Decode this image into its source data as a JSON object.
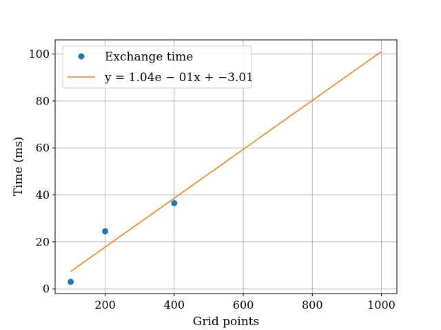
{
  "chart_data": {
    "type": "scatter",
    "title": "",
    "xlabel": "Grid points",
    "ylabel": "Time (ms)",
    "xlim": [
      55,
      1045
    ],
    "ylim": [
      -2,
      106
    ],
    "xticks": [
      200,
      400,
      600,
      800,
      1000
    ],
    "yticks": [
      0,
      20,
      40,
      60,
      80,
      100
    ],
    "grid": true,
    "legend_position": "top-left",
    "series": [
      {
        "name": "Exchange time",
        "kind": "scatter",
        "color": "#1f77b4",
        "x": [
          100,
          200,
          400
        ],
        "y": [
          3.0,
          24.5,
          36.5
        ]
      },
      {
        "name": "y = 1.04e − 01x + −3.01",
        "kind": "line",
        "color": "#ff7f0e",
        "x": [
          100,
          1000
        ],
        "y": [
          7.39,
          101.0
        ]
      }
    ]
  }
}
